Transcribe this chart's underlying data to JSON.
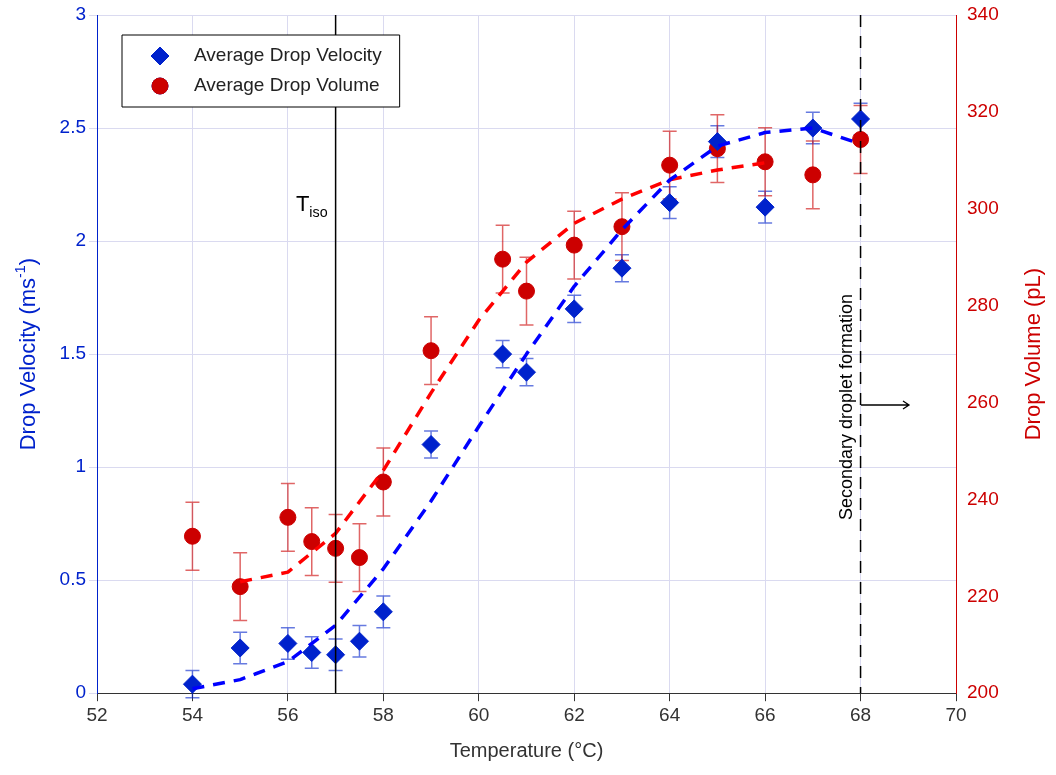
{
  "chart_data": {
    "type": "scatter",
    "xlabel": "Temperature (°C)",
    "ylabel": "Drop Velocity (ms$^{-1}$)",
    "y2label": "Drop Volume (pL)",
    "xlim": [
      52,
      70
    ],
    "xticks": [
      52,
      54,
      56,
      58,
      60,
      62,
      64,
      66,
      68,
      70
    ],
    "ylim": [
      0,
      3
    ],
    "yticks": [
      0,
      0.5,
      1,
      1.5,
      2,
      2.5,
      3
    ],
    "y2lim": [
      200,
      340
    ],
    "y2ticks": [
      200,
      220,
      240,
      260,
      280,
      300,
      320,
      340
    ],
    "grid": true,
    "legend": "top left",
    "series": [
      {
        "name": "Average Drop Velocity",
        "marker": "diamond",
        "color": "#0022cc",
        "axis": "y",
        "x": [
          54,
          55,
          56,
          56.5,
          57,
          57.5,
          58,
          59,
          60.5,
          61,
          62,
          63,
          64,
          65,
          66,
          67,
          68
        ],
        "values": [
          0.04,
          0.2,
          0.22,
          0.18,
          0.17,
          0.23,
          0.36,
          1.1,
          1.5,
          1.42,
          1.7,
          1.88,
          2.17,
          2.44,
          2.15,
          2.5,
          2.54
        ],
        "errors": [
          0.06,
          0.07,
          0.07,
          0.07,
          0.07,
          0.07,
          0.07,
          0.06,
          0.06,
          0.06,
          0.06,
          0.06,
          0.07,
          0.07,
          0.07,
          0.07,
          0.07
        ]
      },
      {
        "name": "Average Drop Volume",
        "marker": "circle",
        "color": "#cc0000",
        "axis": "y2",
        "x": [
          54,
          55,
          56,
          56.5,
          57,
          57.5,
          58,
          59,
          60.5,
          61,
          62,
          63,
          64,
          65,
          66,
          67,
          68
        ],
        "values": [
          232.4,
          222,
          236.3,
          231.3,
          229.9,
          228,
          243.6,
          270.7,
          289.6,
          283,
          292.5,
          296.3,
          309,
          312.4,
          309.7,
          307,
          314.3
        ],
        "errors": [
          7,
          7,
          7,
          7,
          7,
          7,
          7,
          7,
          7,
          7,
          7,
          7,
          7,
          7,
          7,
          7,
          7
        ]
      },
      {
        "type": "line",
        "line_style": "dashed",
        "marker": "none",
        "color": "#0000ff",
        "axis": "y",
        "x": [
          54,
          55,
          56,
          57,
          58,
          59,
          60,
          61,
          62,
          63,
          64,
          65,
          66,
          67,
          68
        ],
        "values": [
          0.02,
          0.06,
          0.14,
          0.3,
          0.55,
          0.85,
          1.18,
          1.5,
          1.8,
          2.05,
          2.27,
          2.42,
          2.48,
          2.5,
          2.43
        ]
      },
      {
        "type": "line",
        "line_style": "dashed",
        "marker": "none",
        "color": "#ff0000",
        "axis": "y2",
        "x": [
          55,
          56,
          57,
          58,
          59,
          60,
          61,
          62,
          63,
          64,
          65,
          66
        ],
        "values": [
          223,
          225,
          233,
          246,
          262,
          277,
          289,
          297,
          302,
          306,
          308,
          309.5
        ]
      }
    ],
    "ref_lines": [
      {
        "axis": "x",
        "value": 57,
        "label": "T$_{iso}$",
        "color": "#000000",
        "line_style": "solid"
      },
      {
        "axis": "x",
        "value": 68,
        "label": "Secondary droplet formation",
        "color": "#000000",
        "line_style": "dashed"
      }
    ]
  }
}
